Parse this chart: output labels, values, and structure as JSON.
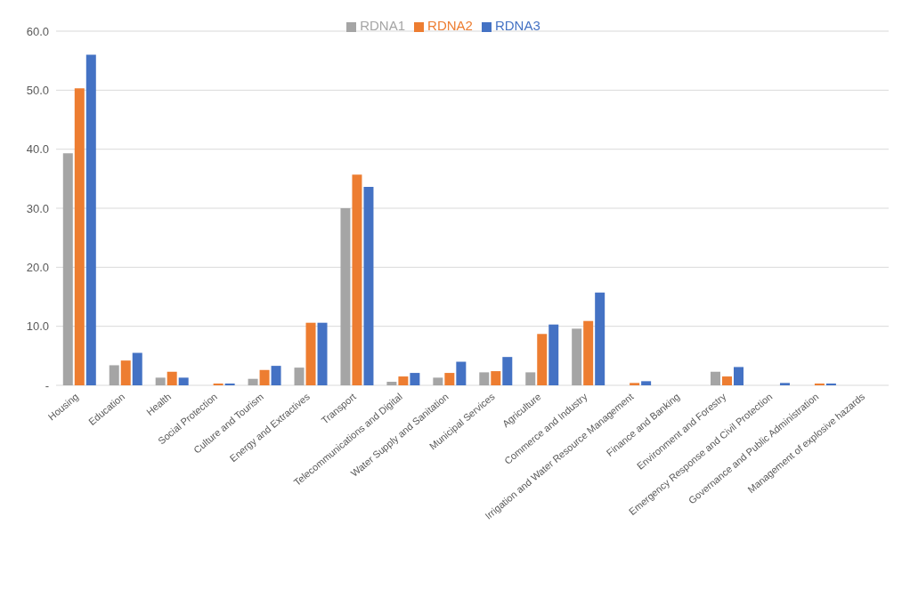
{
  "chart_data": {
    "type": "bar",
    "categories": [
      "Housing",
      "Education",
      "Health",
      "Social Protection",
      "Culture and Tourism",
      "Energy and Extractives",
      "Transport",
      "Telecommunications and Digital",
      "Water Supply and Sanitation",
      "Municipal Services",
      "Agriculture",
      "Commerce and Industry",
      "Irrigation and Water Resource Management",
      "Finance and Banking",
      "Environment and Forestry",
      "Emergency Response and Civil Protection",
      "Governance and Public Administration",
      "Management of explosive hazards"
    ],
    "series": [
      {
        "name": "RDNA1",
        "color": "#a5a5a5",
        "values": [
          39.3,
          3.4,
          1.3,
          0,
          1.1,
          3.0,
          30.0,
          0.6,
          1.3,
          2.2,
          2.2,
          9.6,
          0,
          0,
          2.3,
          0,
          0,
          0
        ]
      },
      {
        "name": "RDNA2",
        "color": "#ed7d31",
        "values": [
          50.3,
          4.2,
          2.3,
          0.3,
          2.6,
          10.6,
          35.7,
          1.5,
          2.1,
          2.4,
          8.7,
          10.9,
          0.4,
          0,
          1.5,
          0,
          0.3,
          0
        ]
      },
      {
        "name": "RDNA3",
        "color": "#4472c4",
        "values": [
          56.0,
          5.5,
          1.3,
          0.3,
          3.3,
          10.6,
          33.6,
          2.1,
          4.0,
          4.8,
          10.3,
          15.7,
          0.7,
          0,
          3.1,
          0.4,
          0.3,
          0
        ]
      }
    ],
    "ylim": [
      0,
      60
    ],
    "yticks": [
      {
        "value": 0,
        "label": "-"
      },
      {
        "value": 10,
        "label": "10.0"
      },
      {
        "value": 20,
        "label": "20.0"
      },
      {
        "value": 30,
        "label": "30.0"
      },
      {
        "value": 40,
        "label": "40.0"
      },
      {
        "value": 50,
        "label": "50.0"
      },
      {
        "value": 60,
        "label": "60.0"
      }
    ],
    "grid": "y",
    "legend": "top"
  }
}
